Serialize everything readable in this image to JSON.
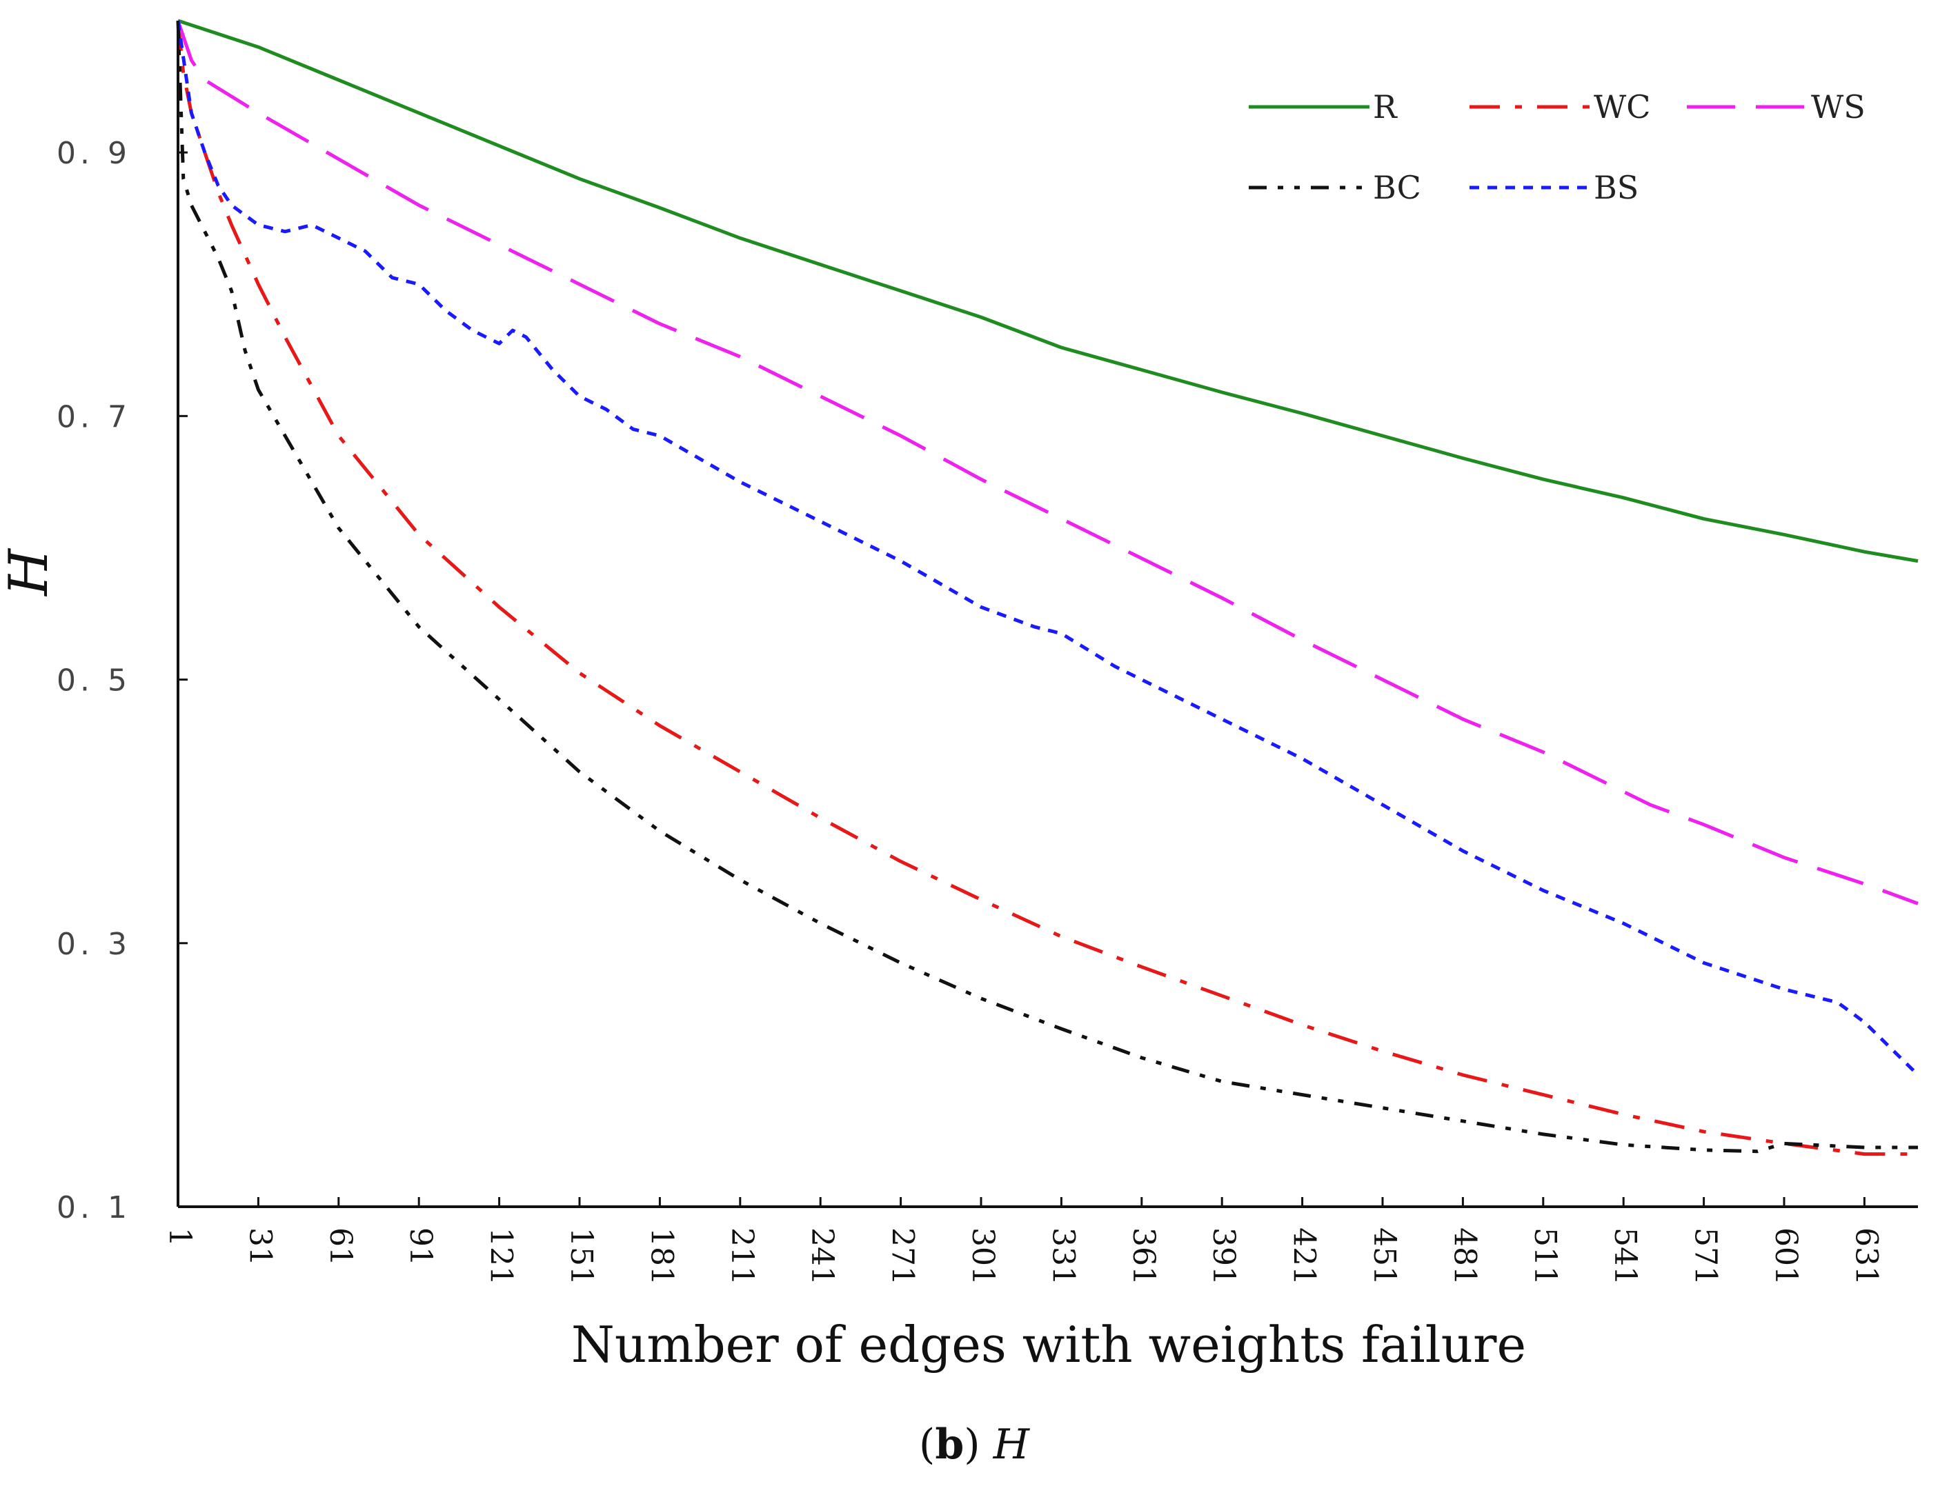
{
  "chart_data": {
    "type": "line",
    "xlabel": "Number of edges with weights failure",
    "ylabel": "H",
    "caption": {
      "panel": "b",
      "title": "H"
    },
    "xlim": [
      1,
      651
    ],
    "ylim": [
      0.1,
      1.0
    ],
    "x_ticks": [
      1,
      31,
      61,
      91,
      121,
      151,
      181,
      211,
      241,
      271,
      301,
      331,
      361,
      391,
      421,
      451,
      481,
      511,
      541,
      571,
      601,
      631
    ],
    "y_ticks": [
      0.1,
      0.3,
      0.5,
      0.7,
      0.9
    ],
    "y_tick_labels": [
      "0. 1",
      "0. 3",
      "0. 5",
      "0. 7",
      "0. 9"
    ],
    "legend_position": "top-right",
    "grid": false,
    "series": [
      {
        "name": "R",
        "color": "#1e8c1e",
        "dash": "solid",
        "x": [
          1,
          31,
          61,
          91,
          121,
          151,
          181,
          211,
          241,
          271,
          301,
          331,
          361,
          391,
          421,
          451,
          481,
          511,
          541,
          571,
          601,
          631,
          651
        ],
        "y": [
          1.0,
          0.98,
          0.955,
          0.93,
          0.905,
          0.88,
          0.858,
          0.835,
          0.815,
          0.795,
          0.775,
          0.752,
          0.735,
          0.718,
          0.702,
          0.685,
          0.668,
          0.652,
          0.638,
          0.622,
          0.61,
          0.597,
          0.59
        ]
      },
      {
        "name": "WC",
        "color": "#e81818",
        "dash": "dashdot",
        "x": [
          1,
          3,
          6,
          11,
          16,
          21,
          31,
          41,
          61,
          91,
          121,
          151,
          181,
          211,
          241,
          271,
          301,
          331,
          361,
          391,
          421,
          451,
          481,
          511,
          541,
          571,
          601,
          631,
          651
        ],
        "y": [
          1.0,
          0.96,
          0.93,
          0.9,
          0.87,
          0.845,
          0.8,
          0.76,
          0.685,
          0.61,
          0.555,
          0.505,
          0.465,
          0.43,
          0.395,
          0.362,
          0.333,
          0.305,
          0.282,
          0.26,
          0.238,
          0.218,
          0.2,
          0.185,
          0.17,
          0.157,
          0.148,
          0.14,
          0.14
        ]
      },
      {
        "name": "WS",
        "color": "#f020f0",
        "dash": "longdash",
        "x": [
          1,
          6,
          11,
          31,
          61,
          91,
          121,
          151,
          181,
          211,
          241,
          271,
          301,
          331,
          361,
          391,
          421,
          451,
          481,
          511,
          541,
          551,
          571,
          601,
          631,
          651
        ],
        "y": [
          1.0,
          0.97,
          0.955,
          0.93,
          0.895,
          0.86,
          0.83,
          0.8,
          0.77,
          0.745,
          0.715,
          0.685,
          0.652,
          0.622,
          0.592,
          0.562,
          0.53,
          0.5,
          0.47,
          0.445,
          0.415,
          0.405,
          0.39,
          0.365,
          0.345,
          0.33
        ]
      },
      {
        "name": "BC",
        "color": "#111111",
        "dash": "dashdotdot",
        "x": [
          1,
          3,
          6,
          11,
          16,
          21,
          26,
          31,
          41,
          61,
          91,
          121,
          151,
          181,
          211,
          241,
          271,
          301,
          331,
          361,
          391,
          421,
          451,
          481,
          511,
          541,
          571,
          591,
          601,
          631,
          651
        ],
        "y": [
          1.0,
          0.88,
          0.86,
          0.84,
          0.82,
          0.795,
          0.75,
          0.72,
          0.685,
          0.615,
          0.54,
          0.485,
          0.43,
          0.385,
          0.348,
          0.315,
          0.285,
          0.258,
          0.235,
          0.213,
          0.195,
          0.185,
          0.175,
          0.165,
          0.155,
          0.147,
          0.143,
          0.142,
          0.148,
          0.145,
          0.145
        ]
      },
      {
        "name": "BS",
        "color": "#1a1aff",
        "dash": "dotted",
        "x": [
          1,
          6,
          11,
          16,
          21,
          31,
          41,
          51,
          61,
          71,
          81,
          91,
          101,
          111,
          121,
          126,
          131,
          141,
          151,
          161,
          171,
          181,
          211,
          241,
          271,
          301,
          321,
          331,
          351,
          361,
          391,
          421,
          451,
          481,
          511,
          541,
          571,
          601,
          621,
          631,
          651
        ],
        "y": [
          1.0,
          0.93,
          0.9,
          0.875,
          0.86,
          0.845,
          0.84,
          0.845,
          0.835,
          0.825,
          0.805,
          0.8,
          0.78,
          0.765,
          0.755,
          0.765,
          0.76,
          0.735,
          0.715,
          0.705,
          0.69,
          0.685,
          0.65,
          0.62,
          0.59,
          0.555,
          0.54,
          0.535,
          0.51,
          0.5,
          0.47,
          0.44,
          0.405,
          0.37,
          0.34,
          0.315,
          0.285,
          0.265,
          0.255,
          0.24,
          0.2
        ]
      }
    ]
  }
}
